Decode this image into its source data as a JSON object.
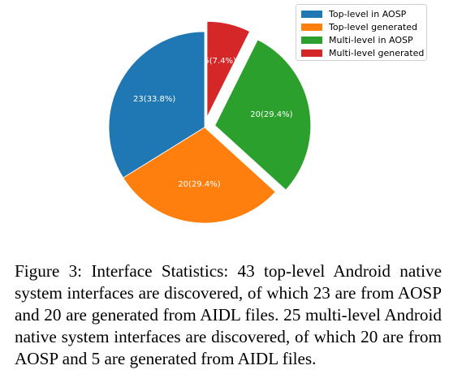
{
  "chart_data": {
    "type": "pie",
    "categories": [
      "Top-level in AOSP",
      "Top-level generated",
      "Multi-level in AOSP",
      "Multi-level generated"
    ],
    "values": [
      23,
      20,
      20,
      5
    ],
    "slice_labels": [
      "23(33.8%)",
      "20(29.4%)",
      "20(29.4%)",
      "5(7.4%)"
    ],
    "colors": [
      "#1f77b4",
      "#ff7f0e",
      "#2ca02c",
      "#d62728"
    ],
    "exploded": [
      false,
      false,
      true,
      true
    ],
    "start_angle_deg": 90,
    "direction": "counterclockwise",
    "legend": {
      "placement": "top-right",
      "entries": [
        "Top-level in AOSP",
        "Top-level generated",
        "Multi-level in AOSP",
        "Multi-level generated"
      ]
    }
  },
  "caption": {
    "text": "Figure 3: Interface Statistics: 43 top-level Android native system interfaces are discovered, of which 23 are from AOSP and 20 are generated from AIDL files. 25 multi-level Android native system interfaces are discovered, of which 20 are from AOSP and 5 are generated from AIDL files."
  }
}
